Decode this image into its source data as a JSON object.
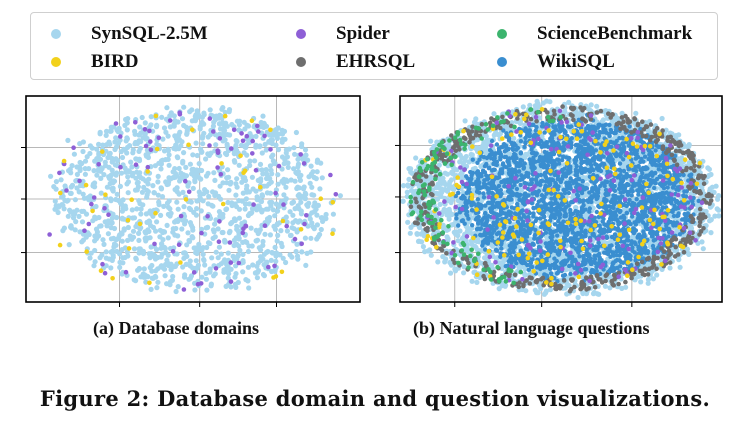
{
  "legend": [
    {
      "name": "SynSQL-2.5M",
      "color": "#a6d6ee"
    },
    {
      "name": "Spider",
      "color": "#8e5fd6"
    },
    {
      "name": "ScienceBenchmark",
      "color": "#3cb46e"
    },
    {
      "name": "BIRD",
      "color": "#f2d11b"
    },
    {
      "name": "EHRSQL",
      "color": "#6e6e6e"
    },
    {
      "name": "WikiSQL",
      "color": "#3a8ed0"
    }
  ],
  "chart_data": [
    {
      "type": "scatter",
      "title": "(a) Database domains",
      "xlabel": "",
      "ylabel": "",
      "grid": true,
      "series": [
        {
          "name": "SynSQL-2.5M",
          "color": "#a6d6ee",
          "shape": "ellipse",
          "center": [
            0.5,
            0.5
          ],
          "spread": [
            0.42,
            0.44
          ],
          "approx_points": 1400
        },
        {
          "name": "Spider",
          "color": "#8e5fd6",
          "shape": "scattered-within-domain",
          "approx_points": 90
        },
        {
          "name": "BIRD",
          "color": "#f2d11b",
          "shape": "scattered-within-domain",
          "approx_points": 40
        }
      ]
    },
    {
      "type": "scatter",
      "title": "(b) Natural language questions",
      "xlabel": "",
      "ylabel": "",
      "grid": true,
      "series": [
        {
          "name": "SynSQL-2.5M",
          "color": "#a6d6ee",
          "shape": "ellipse",
          "center": [
            0.5,
            0.5
          ],
          "spread": [
            0.48,
            0.46
          ],
          "approx_points": 3000
        },
        {
          "name": "WikiSQL",
          "color": "#3a8ed0",
          "shape": "dense-core",
          "center": [
            0.55,
            0.5
          ],
          "spread": [
            0.36,
            0.38
          ],
          "approx_points": 2600
        },
        {
          "name": "EHRSQL",
          "color": "#6e6e6e",
          "shape": "outer-ring",
          "approx_points": 500
        },
        {
          "name": "Spider",
          "color": "#8e5fd6",
          "shape": "scattered-within-domain",
          "approx_points": 150
        },
        {
          "name": "BIRD",
          "color": "#f2d11b",
          "shape": "scattered-within-domain",
          "approx_points": 150
        },
        {
          "name": "ScienceBenchmark",
          "color": "#3cb46e",
          "shape": "left-edge",
          "approx_points": 120
        }
      ]
    }
  ],
  "figure_caption": "Figure 2:  Database domain and question visualizations."
}
